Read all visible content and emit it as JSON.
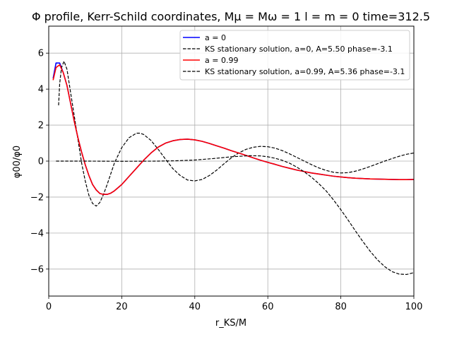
{
  "chart_data": {
    "type": "line",
    "title": "Φ profile, Kerr-Schild coordinates, Mμ = Mω = 1  l = m = 0  time=312.5",
    "xlabel": "r_KS/M",
    "ylabel": "φ00/φ0",
    "xlim": [
      0,
      100
    ],
    "ylim": [
      -7.5,
      7.5
    ],
    "xticks": [
      0,
      20,
      40,
      60,
      80,
      100
    ],
    "yticks": [
      -6,
      -4,
      -2,
      0,
      2,
      4,
      6
    ],
    "grid": true,
    "legend_position": "top-right",
    "series": [
      {
        "name": "a = 0",
        "color": "#0000ff",
        "dash": "solid",
        "points": [
          [
            1.2,
            4.6
          ],
          [
            2.0,
            5.45
          ],
          [
            3.0,
            5.45
          ],
          [
            4.0,
            4.9
          ],
          [
            5.0,
            4.2
          ],
          [
            6.0,
            3.2
          ],
          [
            7.0,
            2.2
          ],
          [
            8.0,
            1.3
          ],
          [
            9.0,
            0.5
          ],
          [
            10.0,
            -0.2
          ],
          [
            11.0,
            -0.8
          ],
          [
            12.0,
            -1.3
          ],
          [
            13.0,
            -1.6
          ],
          [
            14.0,
            -1.8
          ],
          [
            15.0,
            -1.85
          ],
          [
            16.0,
            -1.85
          ],
          [
            17.0,
            -1.78
          ],
          [
            18.0,
            -1.65
          ],
          [
            20.0,
            -1.3
          ],
          [
            22.0,
            -0.85
          ],
          [
            24.0,
            -0.4
          ],
          [
            26.0,
            0.05
          ],
          [
            28.0,
            0.45
          ],
          [
            30.0,
            0.78
          ],
          [
            32.0,
            1.0
          ],
          [
            34.0,
            1.13
          ],
          [
            36.0,
            1.2
          ],
          [
            38.0,
            1.22
          ],
          [
            40.0,
            1.18
          ],
          [
            42.0,
            1.1
          ],
          [
            44.0,
            0.98
          ],
          [
            46.0,
            0.85
          ],
          [
            48.0,
            0.72
          ],
          [
            50.0,
            0.58
          ],
          [
            52.0,
            0.45
          ],
          [
            54.0,
            0.32
          ],
          [
            56.0,
            0.18
          ],
          [
            58.0,
            0.05
          ],
          [
            60.0,
            -0.07
          ],
          [
            62.0,
            -0.18
          ],
          [
            64.0,
            -0.3
          ],
          [
            66.0,
            -0.4
          ],
          [
            68.0,
            -0.5
          ],
          [
            70.0,
            -0.58
          ],
          [
            72.0,
            -0.66
          ],
          [
            74.0,
            -0.72
          ],
          [
            76.0,
            -0.78
          ],
          [
            78.0,
            -0.84
          ],
          [
            80.0,
            -0.88
          ],
          [
            82.0,
            -0.92
          ],
          [
            84.0,
            -0.95
          ],
          [
            86.0,
            -0.97
          ],
          [
            88.0,
            -0.99
          ],
          [
            90.0,
            -1.0
          ],
          [
            92.0,
            -1.01
          ],
          [
            94.0,
            -1.02
          ],
          [
            96.0,
            -1.03
          ],
          [
            98.0,
            -1.03
          ],
          [
            100.0,
            -1.02
          ]
        ]
      },
      {
        "name": "KS stationary solution, a=0, A=5.50 phase=-3.1",
        "color": "#000000",
        "dash": "dashed",
        "points": [
          [
            2.7,
            3.1
          ],
          [
            3.0,
            4.3
          ],
          [
            3.5,
            5.2
          ],
          [
            4.2,
            5.55
          ],
          [
            5.0,
            5.1
          ],
          [
            6.0,
            3.8
          ],
          [
            7.0,
            2.5
          ],
          [
            8.0,
            1.2
          ],
          [
            9.0,
            -0.1
          ],
          [
            10.0,
            -1.1
          ],
          [
            11.0,
            -1.9
          ],
          [
            12.0,
            -2.35
          ],
          [
            13.0,
            -2.5
          ],
          [
            14.0,
            -2.3
          ],
          [
            15.0,
            -1.85
          ],
          [
            16.0,
            -1.3
          ],
          [
            17.0,
            -0.7
          ],
          [
            18.0,
            -0.1
          ],
          [
            20.0,
            0.75
          ],
          [
            22.0,
            1.3
          ],
          [
            24.0,
            1.55
          ],
          [
            25.0,
            1.55
          ],
          [
            26.0,
            1.48
          ],
          [
            28.0,
            1.15
          ],
          [
            30.0,
            0.65
          ],
          [
            32.0,
            0.1
          ],
          [
            34.0,
            -0.42
          ],
          [
            36.0,
            -0.8
          ],
          [
            38.0,
            -1.05
          ],
          [
            40.0,
            -1.1
          ],
          [
            42.0,
            -1.02
          ],
          [
            44.0,
            -0.8
          ],
          [
            46.0,
            -0.5
          ],
          [
            48.0,
            -0.15
          ],
          [
            50.0,
            0.18
          ],
          [
            52.0,
            0.45
          ],
          [
            54.0,
            0.65
          ],
          [
            56.0,
            0.77
          ],
          [
            58.0,
            0.82
          ],
          [
            60.0,
            0.8
          ],
          [
            62.0,
            0.72
          ],
          [
            64.0,
            0.58
          ],
          [
            66.0,
            0.4
          ],
          [
            68.0,
            0.2
          ],
          [
            70.0,
            0.0
          ],
          [
            72.0,
            -0.2
          ],
          [
            74.0,
            -0.38
          ],
          [
            76.0,
            -0.52
          ],
          [
            78.0,
            -0.62
          ],
          [
            80.0,
            -0.66
          ],
          [
            82.0,
            -0.64
          ],
          [
            84.0,
            -0.56
          ],
          [
            86.0,
            -0.44
          ],
          [
            88.0,
            -0.3
          ],
          [
            90.0,
            -0.15
          ],
          [
            92.0,
            0.0
          ],
          [
            94.0,
            0.14
          ],
          [
            96.0,
            0.27
          ],
          [
            98.0,
            0.38
          ],
          [
            100.0,
            0.45
          ]
        ]
      },
      {
        "name": "a = 0.99",
        "color": "#ff0000",
        "dash": "solid",
        "points": [
          [
            1.2,
            4.5
          ],
          [
            2.0,
            5.2
          ],
          [
            3.0,
            5.35
          ],
          [
            4.0,
            4.9
          ],
          [
            5.0,
            4.2
          ],
          [
            6.0,
            3.2
          ],
          [
            7.0,
            2.2
          ],
          [
            8.0,
            1.3
          ],
          [
            9.0,
            0.5
          ],
          [
            10.0,
            -0.2
          ],
          [
            11.0,
            -0.8
          ],
          [
            12.0,
            -1.3
          ],
          [
            13.0,
            -1.6
          ],
          [
            14.0,
            -1.8
          ],
          [
            15.0,
            -1.85
          ],
          [
            16.0,
            -1.85
          ],
          [
            17.0,
            -1.78
          ],
          [
            18.0,
            -1.65
          ],
          [
            20.0,
            -1.3
          ],
          [
            22.0,
            -0.85
          ],
          [
            24.0,
            -0.4
          ],
          [
            26.0,
            0.05
          ],
          [
            28.0,
            0.45
          ],
          [
            30.0,
            0.78
          ],
          [
            32.0,
            1.0
          ],
          [
            34.0,
            1.13
          ],
          [
            36.0,
            1.2
          ],
          [
            38.0,
            1.22
          ],
          [
            40.0,
            1.18
          ],
          [
            42.0,
            1.1
          ],
          [
            44.0,
            0.98
          ],
          [
            46.0,
            0.85
          ],
          [
            48.0,
            0.72
          ],
          [
            50.0,
            0.58
          ],
          [
            52.0,
            0.45
          ],
          [
            54.0,
            0.32
          ],
          [
            56.0,
            0.18
          ],
          [
            58.0,
            0.05
          ],
          [
            60.0,
            -0.07
          ],
          [
            62.0,
            -0.18
          ],
          [
            64.0,
            -0.3
          ],
          [
            66.0,
            -0.4
          ],
          [
            68.0,
            -0.5
          ],
          [
            70.0,
            -0.58
          ],
          [
            72.0,
            -0.66
          ],
          [
            74.0,
            -0.72
          ],
          [
            76.0,
            -0.78
          ],
          [
            78.0,
            -0.84
          ],
          [
            80.0,
            -0.88
          ],
          [
            82.0,
            -0.92
          ],
          [
            84.0,
            -0.95
          ],
          [
            86.0,
            -0.97
          ],
          [
            88.0,
            -0.99
          ],
          [
            90.0,
            -1.0
          ],
          [
            92.0,
            -1.01
          ],
          [
            94.0,
            -1.02
          ],
          [
            96.0,
            -1.03
          ],
          [
            98.0,
            -1.03
          ],
          [
            100.0,
            -1.02
          ]
        ]
      },
      {
        "name": "KS stationary solution, a=0.99, A=5.36 phase=-3.1",
        "color": "#000000",
        "dash": "dashed",
        "points": [
          [
            2.0,
            0.0
          ],
          [
            10.0,
            0.0
          ],
          [
            20.0,
            -0.01
          ],
          [
            30.0,
            0.0
          ],
          [
            35.0,
            0.02
          ],
          [
            40.0,
            0.06
          ],
          [
            45.0,
            0.14
          ],
          [
            50.0,
            0.24
          ],
          [
            55.0,
            0.3
          ],
          [
            58.0,
            0.29
          ],
          [
            60.0,
            0.24
          ],
          [
            62.0,
            0.16
          ],
          [
            64.0,
            0.04
          ],
          [
            66.0,
            -0.12
          ],
          [
            68.0,
            -0.34
          ],
          [
            70.0,
            -0.6
          ],
          [
            72.0,
            -0.9
          ],
          [
            74.0,
            -1.26
          ],
          [
            76.0,
            -1.66
          ],
          [
            78.0,
            -2.16
          ],
          [
            80.0,
            -2.7
          ],
          [
            82.0,
            -3.28
          ],
          [
            84.0,
            -3.88
          ],
          [
            86.0,
            -4.46
          ],
          [
            88.0,
            -5.0
          ],
          [
            90.0,
            -5.48
          ],
          [
            92.0,
            -5.86
          ],
          [
            94.0,
            -6.14
          ],
          [
            96.0,
            -6.28
          ],
          [
            98.0,
            -6.3
          ],
          [
            100.0,
            -6.2
          ]
        ]
      }
    ]
  }
}
